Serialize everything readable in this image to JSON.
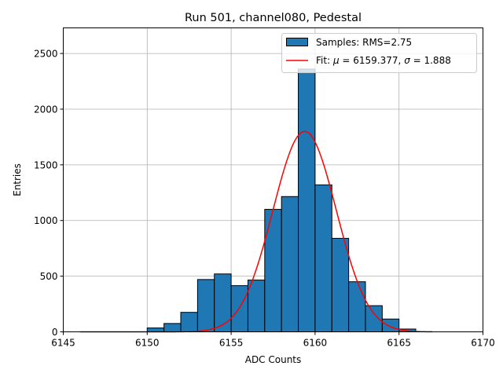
{
  "chart_data": {
    "type": "bar",
    "title": "Run 501, channel080, Pedestal",
    "xlabel": "ADC Counts",
    "ylabel": "Entries",
    "xlim": [
      6145,
      6170
    ],
    "ylim": [
      0,
      2730
    ],
    "xticks": [
      6145,
      6150,
      6155,
      6160,
      6165,
      6170
    ],
    "yticks": [
      0,
      500,
      1000,
      1500,
      2000,
      2500
    ],
    "grid": true,
    "legend_position": "top-right",
    "histogram": {
      "name": "Samples: RMS=2.75",
      "color": "#1f77b4",
      "bin_edges": [
        6150,
        6151,
        6152,
        6153,
        6154,
        6155,
        6156,
        6157,
        6158,
        6159,
        6160,
        6161,
        6162,
        6163,
        6164,
        6165,
        6166
      ],
      "counts": [
        35,
        75,
        175,
        470,
        520,
        415,
        465,
        1100,
        1215,
        2360,
        1320,
        840,
        450,
        235,
        115,
        25
      ]
    },
    "fit": {
      "name_prefix": "Fit:",
      "mu_label": "μ",
      "mu_value": "6159.377",
      "sigma_label": "σ",
      "sigma_value": "1.888",
      "color": "#ff0000",
      "mu": 6159.377,
      "sigma": 1.888,
      "amplitude": 1800,
      "x_range": [
        6146,
        6167
      ]
    }
  }
}
